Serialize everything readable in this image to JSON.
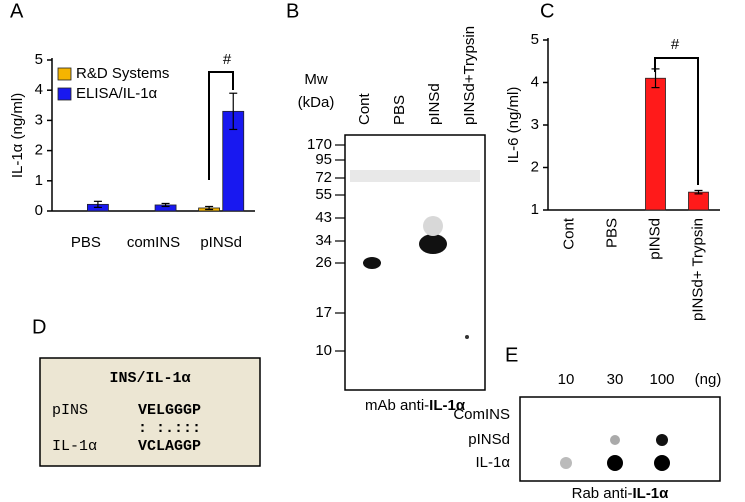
{
  "chart_data": [
    {
      "type": "bar",
      "panel": "A",
      "y_label": "IL-1α (ng/ml)",
      "categories": [
        "PBS",
        "comINS",
        "pINSd"
      ],
      "series": [
        {
          "name": "R&D Systems",
          "color": "#f5b400",
          "values": [
            0,
            0,
            0.1
          ],
          "errors": [
            0,
            0,
            0.05
          ]
        },
        {
          "name": "ELISA/IL-1α",
          "color": "#1818f0",
          "values": [
            0.22,
            0.2,
            3.3
          ],
          "errors": [
            0.1,
            0.05,
            0.6
          ]
        }
      ],
      "ylim": [
        0,
        5
      ],
      "yticks": [
        0,
        1,
        2,
        3,
        4,
        5
      ],
      "legend": "upper left",
      "annotation": "#"
    },
    {
      "type": "bar",
      "panel": "C",
      "y_label": "IL-6 (ng/ml)",
      "categories": [
        "Cont",
        "PBS",
        "pINSd",
        "pINSd+ Trypsin"
      ],
      "series": [
        {
          "name": null,
          "color": "#ff1a1a",
          "values": [
            null,
            null,
            4.1,
            1.42
          ],
          "errors": [
            null,
            null,
            0.22,
            0.04
          ]
        }
      ],
      "ylim": [
        1,
        5
      ],
      "yticks": [
        1,
        2,
        3,
        4,
        5
      ],
      "annotation": "#"
    }
  ],
  "blot": {
    "panel": "B",
    "mw_label": "Mw",
    "kda_label": "(kDa)",
    "lanes": [
      "Cont",
      "PBS",
      "pINSd",
      "pINSd+Trypsin"
    ],
    "markers": [
      "170",
      "95",
      "72",
      "55",
      "43",
      "34",
      "26",
      "17",
      "10"
    ],
    "caption_prefix": "mAb anti-",
    "caption_bold": "IL-1α"
  },
  "alignment": {
    "panel": "D",
    "title": "INS/IL-1α",
    "rows": [
      [
        "pINS",
        "VELGGGP"
      ],
      [
        "",
        ": :.:::"
      ],
      [
        "IL-1α",
        "VCLAGGP"
      ]
    ]
  },
  "dot_blot": {
    "panel": "E",
    "columns": [
      "10",
      "30",
      "100"
    ],
    "unit": "(ng)",
    "rows": [
      "ComINS",
      "pINSd",
      "IL-1α"
    ],
    "caption_prefix": "Rab anti-",
    "caption_bold": "IL-1α"
  }
}
